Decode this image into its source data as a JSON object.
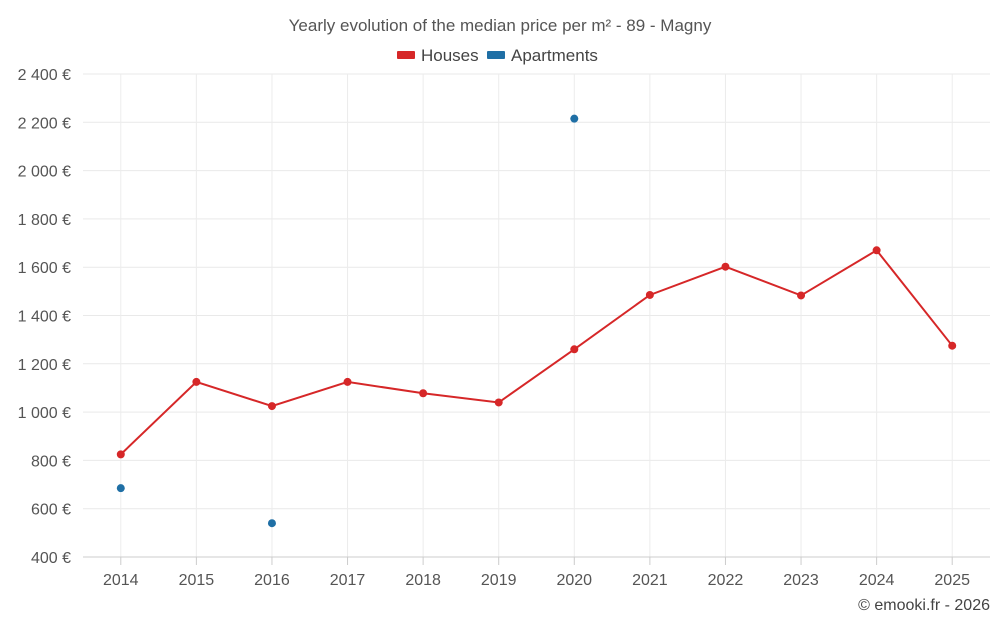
{
  "chart_data": {
    "type": "line",
    "title": "Yearly evolution of the median price per m² - 89 - Magny",
    "categories": [
      "2014",
      "2015",
      "2016",
      "2017",
      "2018",
      "2019",
      "2020",
      "2021",
      "2022",
      "2023",
      "2024",
      "2025"
    ],
    "ylim": [
      400,
      2400
    ],
    "yticks": [
      400,
      600,
      800,
      1000,
      1200,
      1400,
      1600,
      1800,
      2000,
      2200,
      2400
    ],
    "ytick_labels": [
      "400 €",
      "600 €",
      "800 €",
      "1 000 €",
      "1 200 €",
      "1 400 €",
      "1 600 €",
      "1 800 €",
      "2 000 €",
      "2 200 €",
      "2 400 €"
    ],
    "grid": true,
    "legend_position": "top-center",
    "series": [
      {
        "name": "Houses",
        "color": "#d62728",
        "connected": true,
        "values": [
          825,
          1125,
          1025,
          1125,
          1078,
          1040,
          1260,
          1485,
          1602,
          1483,
          1670,
          1275
        ]
      },
      {
        "name": "Apartments",
        "color": "#1f6fa5",
        "connected": false,
        "values": [
          685,
          null,
          540,
          null,
          null,
          null,
          2215,
          null,
          null,
          null,
          null,
          null
        ]
      }
    ]
  },
  "credit": "© emooki.fr - 2026"
}
